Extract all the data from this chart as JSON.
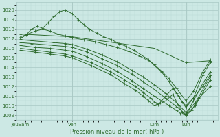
{
  "title": "",
  "xlabel": "Pression niveau de la mer( hPa )",
  "bg_color": "#cce8e4",
  "line_color": "#2d6a2d",
  "grid_major_color": "#a8c8c4",
  "grid_minor_color": "#b8d8d4",
  "text_color": "#2d6a2d",
  "ylim": [
    1008.5,
    1020.8
  ],
  "yticks": [
    1009,
    1010,
    1011,
    1012,
    1013,
    1014,
    1015,
    1016,
    1017,
    1018,
    1019,
    1020
  ],
  "xlim": [
    0.0,
    1.08
  ],
  "xtick_labels": [
    "JeuSam",
    "Ven",
    "Dim",
    "Lun"
  ],
  "xtick_positions": [
    0.02,
    0.3,
    0.74,
    0.91
  ],
  "lines": [
    {
      "x": [
        0.02,
        0.05,
        0.08,
        0.11,
        0.14,
        0.17,
        0.2,
        0.23,
        0.26,
        0.3,
        0.33,
        0.36,
        0.39,
        0.43,
        0.47,
        0.51,
        0.55,
        0.59,
        0.63,
        0.67,
        0.71,
        0.74,
        0.78,
        0.82,
        0.86,
        0.91,
        0.95,
        1.0,
        1.04
      ],
      "y": [
        1017.0,
        1017.4,
        1018.0,
        1018.3,
        1018.1,
        1018.7,
        1019.3,
        1019.8,
        1020.0,
        1019.6,
        1019.0,
        1018.5,
        1018.0,
        1017.6,
        1017.2,
        1016.9,
        1016.5,
        1016.2,
        1015.8,
        1015.3,
        1014.8,
        1014.2,
        1013.5,
        1012.5,
        1011.3,
        1009.8,
        1010.8,
        1013.2,
        1014.5
      ]
    },
    {
      "x": [
        0.02,
        0.06,
        0.1,
        0.14,
        0.18,
        0.22,
        0.26,
        0.3,
        0.36,
        0.42,
        0.48,
        0.54,
        0.6,
        0.66,
        0.72,
        0.74,
        0.78,
        0.82,
        0.86,
        0.91,
        0.95,
        1.0,
        1.04
      ],
      "y": [
        1017.2,
        1017.5,
        1017.8,
        1018.0,
        1017.8,
        1017.5,
        1017.3,
        1017.1,
        1016.9,
        1016.7,
        1016.4,
        1016.1,
        1015.7,
        1015.2,
        1014.6,
        1014.3,
        1013.6,
        1012.8,
        1011.8,
        1010.5,
        1011.5,
        1013.5,
        1014.8
      ]
    },
    {
      "x": [
        0.02,
        0.3,
        0.74,
        0.91,
        1.04
      ],
      "y": [
        1017.5,
        1017.2,
        1016.0,
        1014.5,
        1014.7
      ]
    },
    {
      "x": [
        0.02,
        0.08,
        0.14,
        0.2,
        0.26,
        0.3,
        0.38,
        0.46,
        0.54,
        0.62,
        0.68,
        0.74,
        0.8,
        0.86,
        0.91,
        0.96,
        1.04
      ],
      "y": [
        1016.9,
        1016.8,
        1016.7,
        1016.6,
        1016.5,
        1016.4,
        1015.9,
        1015.3,
        1014.6,
        1013.7,
        1013.0,
        1012.2,
        1011.3,
        1010.3,
        1009.3,
        1010.3,
        1013.0
      ]
    },
    {
      "x": [
        0.02,
        0.08,
        0.14,
        0.2,
        0.26,
        0.3,
        0.38,
        0.46,
        0.54,
        0.62,
        0.68,
        0.74,
        0.8,
        0.86,
        0.91,
        0.96,
        1.04
      ],
      "y": [
        1016.6,
        1016.5,
        1016.4,
        1016.3,
        1016.2,
        1016.1,
        1015.6,
        1014.9,
        1014.2,
        1013.3,
        1012.5,
        1011.7,
        1010.8,
        1009.9,
        1009.1,
        1010.0,
        1012.7
      ]
    },
    {
      "x": [
        0.02,
        0.1,
        0.18,
        0.26,
        0.3,
        0.38,
        0.46,
        0.54,
        0.62,
        0.68,
        0.74,
        0.78,
        0.82,
        0.86,
        0.88,
        0.91,
        0.95,
        1.0,
        1.04
      ],
      "y": [
        1016.3,
        1016.1,
        1016.0,
        1015.8,
        1015.7,
        1015.1,
        1014.4,
        1013.6,
        1012.6,
        1011.8,
        1011.0,
        1010.5,
        1010.0,
        1009.5,
        1009.2,
        1009.0,
        1010.5,
        1012.3,
        1013.5
      ]
    },
    {
      "x": [
        0.02,
        0.1,
        0.18,
        0.26,
        0.3,
        0.4,
        0.5,
        0.58,
        0.64,
        0.68,
        0.72,
        0.74,
        0.76,
        0.8,
        0.84,
        0.87,
        0.89,
        0.91,
        0.94,
        0.98,
        1.04
      ],
      "y": [
        1016.0,
        1015.8,
        1015.6,
        1015.4,
        1015.2,
        1014.5,
        1013.6,
        1012.7,
        1012.0,
        1011.4,
        1010.8,
        1010.4,
        1010.1,
        1010.5,
        1011.2,
        1010.0,
        1009.3,
        1009.0,
        1009.5,
        1010.8,
        1012.0
      ]
    },
    {
      "x": [
        0.02,
        0.1,
        0.18,
        0.26,
        0.3,
        0.4,
        0.5,
        0.58,
        0.64,
        0.68,
        0.71,
        0.74,
        0.77,
        0.8,
        0.84,
        0.87,
        0.89,
        0.91,
        0.95,
        1.0,
        1.04
      ],
      "y": [
        1015.8,
        1015.6,
        1015.4,
        1015.2,
        1015.0,
        1014.2,
        1013.3,
        1012.3,
        1011.6,
        1011.0,
        1010.5,
        1010.0,
        1010.3,
        1011.0,
        1011.8,
        1011.0,
        1010.4,
        1010.0,
        1010.8,
        1012.0,
        1013.2
      ]
    }
  ]
}
